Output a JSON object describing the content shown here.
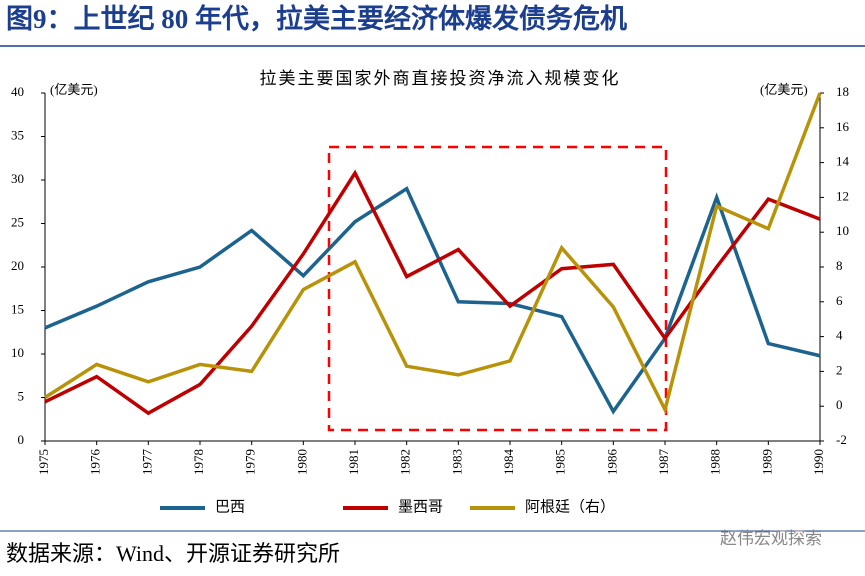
{
  "header": {
    "title": "图9：上世纪 80 年代，拉美主要经济体爆发债务危机"
  },
  "chart_data": {
    "type": "line",
    "title": "拉美主要国家外商直接投资净流入规模变化",
    "y_unit_label": "(亿美元)",
    "y2_unit_label": "(亿美元)",
    "categories": [
      "1975",
      "1976",
      "1977",
      "1978",
      "1979",
      "1980",
      "1981",
      "1982",
      "1983",
      "1984",
      "1985",
      "1986",
      "1987",
      "1988",
      "1989",
      "1990"
    ],
    "series": [
      {
        "name": "巴西",
        "color": "#1c6390",
        "values": [
          13,
          15.5,
          18.3,
          20,
          24.2,
          19,
          25.2,
          29,
          16,
          15.8,
          14.3,
          3.4,
          11.8,
          28,
          11.2,
          9.8
        ]
      },
      {
        "name": "墨西哥",
        "color": "#c00000",
        "values": [
          4.5,
          7.4,
          3.2,
          6.5,
          13.2,
          21.5,
          30.8,
          18.9,
          22,
          15.5,
          19.8,
          20.3,
          11.8,
          20,
          27.8,
          25.5
        ]
      },
      {
        "name": "阿根廷（右）",
        "color": "#b8930a",
        "axis": "y2",
        "values": [
          0.5,
          2.4,
          1.4,
          2.4,
          2.0,
          6.7,
          8.3,
          2.3,
          1.8,
          2.6,
          9.1,
          5.7,
          -0.2,
          11.5,
          10.2,
          18
        ]
      }
    ],
    "ylim": [
      0,
      40
    ],
    "yticks": [
      0,
      5,
      10,
      15,
      20,
      25,
      30,
      35,
      40
    ],
    "y2lim": [
      -2,
      18
    ],
    "y2ticks": [
      -2,
      0,
      2,
      4,
      6,
      8,
      10,
      12,
      14,
      16,
      18
    ],
    "grid": false
  },
  "footer": {
    "source": "数据来源：Wind、开源证券研究所",
    "watermark": "赵伟宏观探索"
  }
}
